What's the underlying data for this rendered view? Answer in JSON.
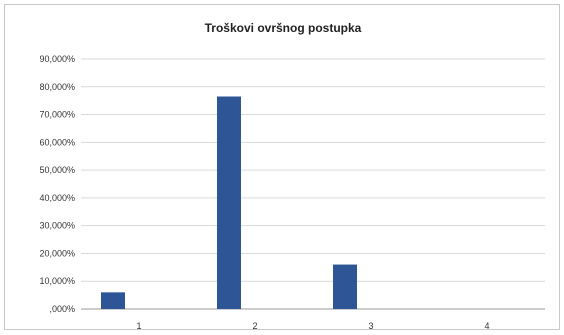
{
  "chart_data": {
    "type": "bar",
    "title": "Troškovi ovršnog postupka",
    "xlabel": "",
    "ylabel": "",
    "categories": [
      "1",
      "2",
      "3",
      "4"
    ],
    "values": [
      6.0,
      76.5,
      16.0,
      0.0
    ],
    "ylim": [
      0,
      90
    ],
    "yticks": [
      ",000%",
      "10,000%",
      "20,000%",
      "30,000%",
      "40,000%",
      "50,000%",
      "60,000%",
      "70,000%",
      "80,000%",
      "90,000%"
    ],
    "grid": true,
    "legend": "none",
    "bar_color": "#2e5596"
  }
}
